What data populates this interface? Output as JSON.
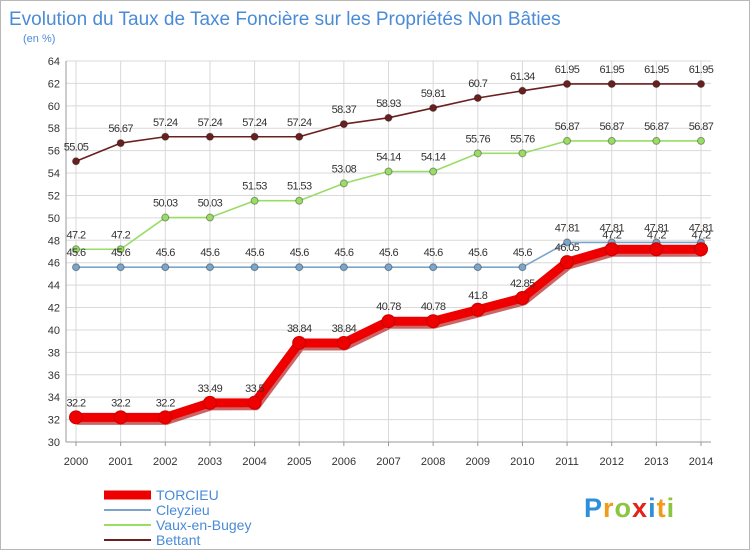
{
  "chart_data": {
    "type": "line",
    "title": "Evolution du Taux de Taxe Foncière sur les Propriétés Non Bâties",
    "subtitle": "(en %)",
    "xlabel": "",
    "ylabel": "",
    "ylim": [
      30,
      64
    ],
    "yticks": [
      30,
      32,
      34,
      36,
      38,
      40,
      42,
      44,
      46,
      48,
      50,
      52,
      54,
      56,
      58,
      60,
      62,
      64
    ],
    "categories": [
      "2000",
      "2001",
      "2002",
      "2003",
      "2004",
      "2005",
      "2006",
      "2007",
      "2008",
      "2009",
      "2010",
      "2011",
      "2012",
      "2013",
      "2014"
    ],
    "series": [
      {
        "name": "Bettant",
        "color": "#6b2020",
        "values": [
          55.05,
          56.67,
          57.24,
          57.24,
          57.24,
          57.24,
          58.37,
          58.93,
          59.81,
          60.7,
          61.34,
          61.95,
          61.95,
          61.95,
          61.95
        ],
        "labels": [
          "55.05",
          "56.67",
          "57.24",
          "57.24",
          "57.24",
          "57.24",
          "58.37",
          "58.93",
          "59.81",
          "60.7",
          "61.34",
          "61.95",
          "61.95",
          "61.95",
          "61.95"
        ]
      },
      {
        "name": "Vaux-en-Bugey",
        "color": "#99dd66",
        "values": [
          47.2,
          47.2,
          50.03,
          50.03,
          51.53,
          51.53,
          53.08,
          54.14,
          54.14,
          55.76,
          55.76,
          56.87,
          56.87,
          56.87,
          56.87
        ],
        "labels": [
          "47.2",
          "47.2",
          "50.03",
          "50.03",
          "51.53",
          "51.53",
          "53.08",
          "54.14",
          "54.14",
          "55.76",
          "55.76",
          "56.87",
          "56.87",
          "56.87",
          "56.87"
        ]
      },
      {
        "name": "Cleyzieu",
        "color": "#7aa6cc",
        "values": [
          45.6,
          45.6,
          45.6,
          45.6,
          45.6,
          45.6,
          45.6,
          45.6,
          45.6,
          45.6,
          45.6,
          47.81,
          47.81,
          47.81,
          47.81
        ],
        "labels": [
          "45.6",
          "45.6",
          "45.6",
          "45.6",
          "45.6",
          "45.6",
          "45.6",
          "45.6",
          "45.6",
          "45.6",
          "45.6",
          "47.81",
          "47.81",
          "47.81",
          "47.81"
        ]
      },
      {
        "name": "TORCIEU",
        "color": "#ee0000",
        "values": [
          32.2,
          32.2,
          32.2,
          33.49,
          33.5,
          38.84,
          38.84,
          40.78,
          40.78,
          41.8,
          42.85,
          46.05,
          47.2,
          47.2,
          47.2
        ],
        "labels": [
          "32.2",
          "32.2",
          "32.2",
          "33.49",
          "33.5",
          "38.84",
          "38.84",
          "40.78",
          "40.78",
          "41.8",
          "42.85",
          "46.05",
          "47.2",
          "47.2",
          "47.2"
        ]
      }
    ],
    "legend_order": [
      "TORCIEU",
      "Cleyzieu",
      "Vaux-en-Bugey",
      "Bettant"
    ],
    "legend_position": "bottom-left",
    "grid": true
  },
  "brand": {
    "letters": [
      "P",
      "r",
      "o",
      "x",
      "i",
      "t",
      "i"
    ],
    "colors": [
      "#2f8fd8",
      "#f29a1a",
      "#8cc63f",
      "#e2231a",
      "#2f8fd8",
      "#f29a1a",
      "#8cc63f"
    ]
  }
}
